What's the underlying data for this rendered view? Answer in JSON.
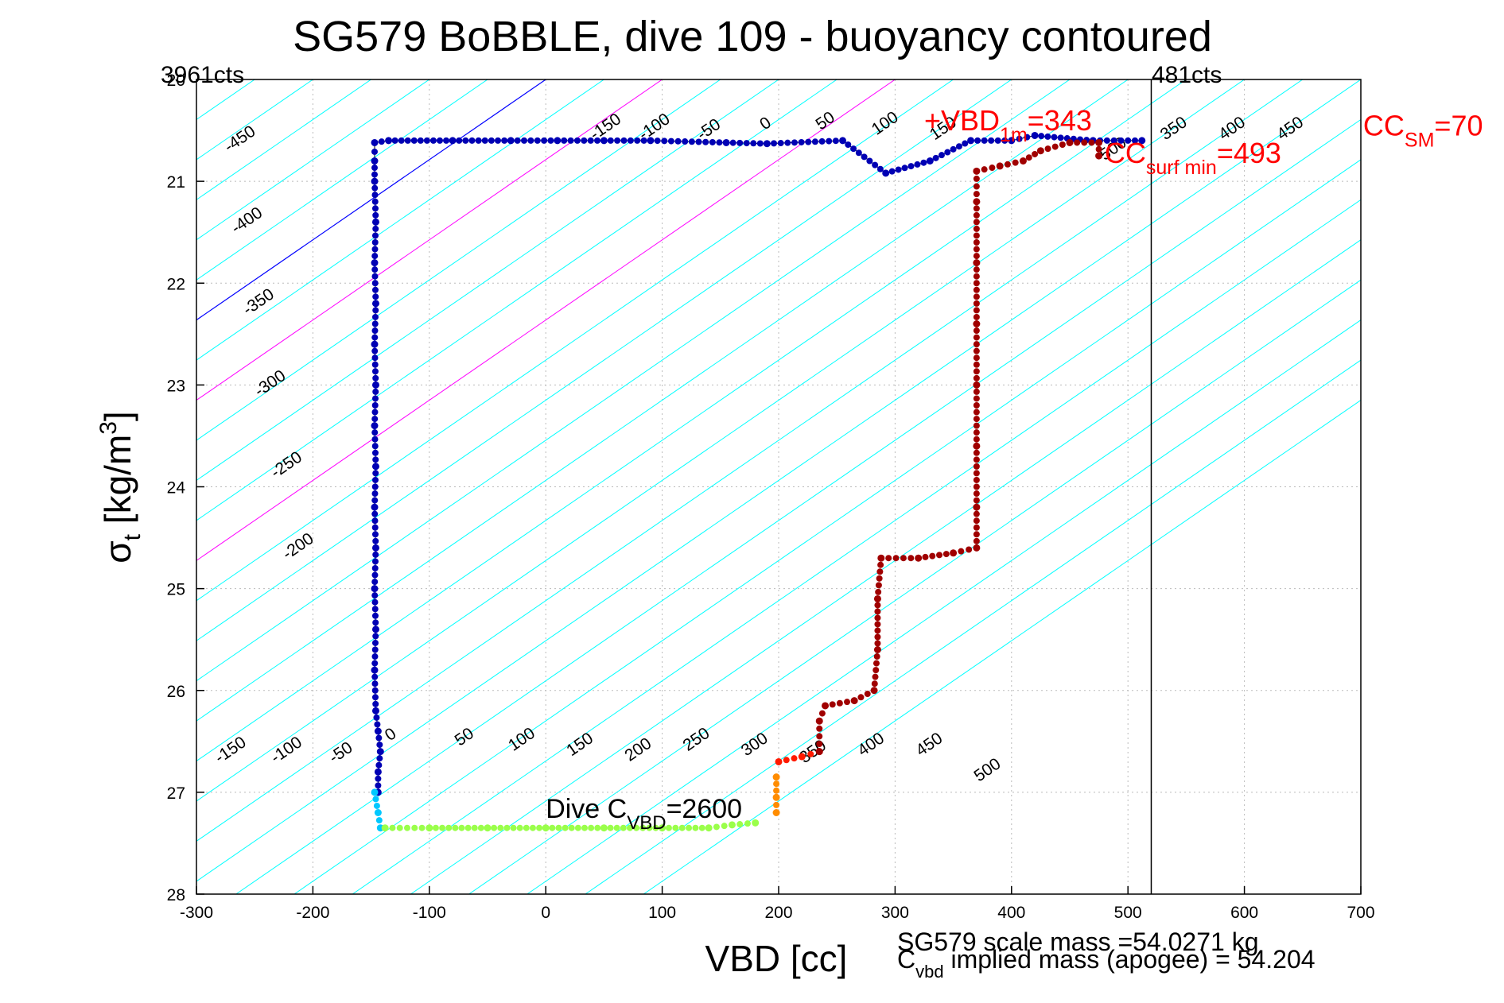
{
  "chart_data": {
    "type": "scatter",
    "title": "SG579 BoBBLE, dive 109 - buoyancy contoured",
    "xlabel": "VBD [cc]",
    "ylabel_main": "σ",
    "ylabel_sub": "t",
    "ylabel_units": "[kg/m",
    "ylabel_sup": "3",
    "ylabel_close": "]",
    "xlim": [
      -300,
      700
    ],
    "ylim": [
      20,
      28
    ],
    "y_reversed": true,
    "grid": true,
    "xticks": [
      "-300",
      "-200",
      "-100",
      "0",
      "100",
      "200",
      "300",
      "400",
      "500",
      "600",
      "700"
    ],
    "yticks": [
      "20",
      "21",
      "22",
      "23",
      "24",
      "25",
      "26",
      "27",
      "28"
    ],
    "counts_left": "3961cts",
    "counts_right": "481cts",
    "counts_right_x": 520,
    "isoline_slope_per_unit_sigma": 127.0,
    "isoline_offsets": [
      -650,
      -600,
      -550,
      -500,
      -450,
      -400,
      -350,
      -300,
      -250,
      -200,
      -150,
      -100,
      -50,
      0,
      50,
      100,
      150,
      200,
      250,
      300,
      350,
      400,
      450,
      500,
      550,
      600,
      650,
      700,
      750,
      800,
      850,
      900,
      950,
      1000,
      1050,
      1100
    ],
    "isoline_colors": {
      "default": "#00ffff",
      "zero": "#0000ff",
      "highlight": "#ff00ff"
    },
    "highlight_offsets": [
      100,
      300
    ],
    "isoline_labels_top": [
      {
        "text": "-450",
        "x": -272,
        "y": 20.72
      },
      {
        "text": "-400",
        "x": -266,
        "y": 21.52
      },
      {
        "text": "-350",
        "x": -256,
        "y": 22.32
      },
      {
        "text": "-300",
        "x": -246,
        "y": 23.12
      },
      {
        "text": "-250",
        "x": -232,
        "y": 23.92
      },
      {
        "text": "-200",
        "x": -222,
        "y": 24.72
      },
      {
        "text": "-150",
        "x": 42,
        "y": 20.6
      },
      {
        "text": "-100",
        "x": 84,
        "y": 20.6
      },
      {
        "text": "-50",
        "x": 134,
        "y": 20.6
      },
      {
        "text": "0",
        "x": 188,
        "y": 20.5
      },
      {
        "text": "50",
        "x": 236,
        "y": 20.5
      },
      {
        "text": "100",
        "x": 284,
        "y": 20.55
      },
      {
        "text": "150",
        "x": 334,
        "y": 20.6
      },
      {
        "text": "350",
        "x": 532,
        "y": 20.6
      },
      {
        "text": "400",
        "x": 582,
        "y": 20.6
      },
      {
        "text": "450",
        "x": 632,
        "y": 20.6
      },
      {
        "text": "500",
        "x": 480,
        "y": 20.8
      }
    ],
    "isoline_labels_bottom": [
      {
        "text": "-150",
        "x": -280,
        "y": 26.72
      },
      {
        "text": "-100",
        "x": -232,
        "y": 26.72
      },
      {
        "text": "-50",
        "x": -182,
        "y": 26.72
      },
      {
        "text": "0",
        "x": -134,
        "y": 26.5
      },
      {
        "text": "50",
        "x": -74,
        "y": 26.55
      },
      {
        "text": "100",
        "x": -28,
        "y": 26.6
      },
      {
        "text": "150",
        "x": 22,
        "y": 26.65
      },
      {
        "text": "200",
        "x": 72,
        "y": 26.7
      },
      {
        "text": "250",
        "x": 122,
        "y": 26.6
      },
      {
        "text": "300",
        "x": 172,
        "y": 26.65
      },
      {
        "text": "350",
        "x": 222,
        "y": 26.72
      },
      {
        "text": "400",
        "x": 272,
        "y": 26.65
      },
      {
        "text": "450",
        "x": 322,
        "y": 26.65
      },
      {
        "text": "500",
        "x": 372,
        "y": 26.9
      }
    ],
    "series": [
      {
        "points": [
          [
            -144,
            27.0
          ],
          [
            -144,
            26.8
          ],
          [
            -142,
            26.6
          ],
          [
            -144,
            26.4
          ],
          [
            -146,
            26.2
          ],
          [
            -147,
            25.8
          ],
          [
            -146,
            25.4
          ],
          [
            -147,
            25.0
          ],
          [
            -146,
            24.6
          ],
          [
            -147,
            24.2
          ],
          [
            -146,
            23.8
          ],
          [
            -147,
            23.4
          ],
          [
            -146,
            23.0
          ],
          [
            -147,
            22.6
          ],
          [
            -146,
            22.2
          ],
          [
            -147,
            21.8
          ],
          [
            -146,
            21.4
          ],
          [
            -147,
            21.0
          ],
          [
            -147,
            20.8
          ],
          [
            -147,
            20.62
          ],
          [
            -135,
            20.6
          ],
          [
            -80,
            20.6
          ],
          [
            -30,
            20.6
          ],
          [
            10,
            20.6
          ],
          [
            50,
            20.6
          ],
          [
            90,
            20.6
          ],
          [
            155,
            20.62
          ],
          [
            190,
            20.63
          ],
          [
            255,
            20.6
          ],
          [
            292,
            20.92
          ],
          [
            330,
            20.8
          ],
          [
            365,
            20.6
          ],
          [
            400,
            20.6
          ],
          [
            420,
            20.55
          ],
          [
            470,
            20.6
          ],
          [
            512,
            20.6
          ]
        ],
        "color": "#0000b4"
      },
      {
        "points": [
          [
            -147,
            27.0
          ],
          [
            -144,
            27.2
          ],
          [
            -142,
            27.35
          ]
        ],
        "color": "#00c8ff"
      },
      {
        "points": [
          [
            -138,
            27.35
          ],
          [
            -100,
            27.35
          ],
          [
            -50,
            27.35
          ],
          [
            0,
            27.35
          ],
          [
            50,
            27.35
          ],
          [
            100,
            27.35
          ],
          [
            140,
            27.35
          ],
          [
            160,
            27.32
          ],
          [
            180,
            27.3
          ]
        ],
        "color": "#9aff4a"
      },
      {
        "points": [
          [
            198,
            26.85
          ],
          [
            198,
            27.05
          ],
          [
            198,
            27.2
          ]
        ],
        "color": "#ff8c00"
      },
      {
        "points": [
          [
            200,
            26.7
          ],
          [
            220,
            26.65
          ],
          [
            235,
            26.6
          ]
        ],
        "color": "#ff1a00"
      },
      {
        "points": [
          [
            235,
            26.6
          ],
          [
            235,
            26.3
          ],
          [
            240,
            26.15
          ],
          [
            265,
            26.1
          ],
          [
            282,
            26.0
          ],
          [
            285,
            25.6
          ],
          [
            285,
            25.1
          ],
          [
            288,
            24.7
          ],
          [
            320,
            24.7
          ],
          [
            350,
            24.65
          ],
          [
            370,
            24.6
          ],
          [
            370,
            24.2
          ],
          [
            370,
            23.6
          ],
          [
            370,
            23.0
          ],
          [
            370,
            22.4
          ],
          [
            370,
            21.8
          ],
          [
            370,
            21.2
          ],
          [
            370,
            20.9
          ],
          [
            390,
            20.85
          ],
          [
            410,
            20.8
          ],
          [
            425,
            20.7
          ],
          [
            450,
            20.62
          ],
          [
            475,
            20.62
          ],
          [
            475,
            20.75
          ]
        ],
        "color": "#a00000"
      }
    ],
    "annotations": [
      {
        "text": "+VBD",
        "sub": "1m",
        "tail": "=343",
        "color": "#ff0000",
        "x": 325,
        "y": 20.5
      },
      {
        "text": "CC",
        "sub": "surf min",
        "tail": "=493",
        "color": "#ff0000",
        "x": 480,
        "y": 20.82
      },
      {
        "text": "CC",
        "sub": "SM",
        "tail": "=70",
        "color": "#ff0000",
        "x": 702,
        "y": 20.55
      },
      {
        "text": "Dive C",
        "sub": "VBD",
        "tail": "=2600",
        "color": "#000000",
        "x": 0,
        "y": 27.25
      }
    ],
    "footer_line1": "SG579 scale mass =54.0271 kg",
    "footer_line2_prefix": "C",
    "footer_line2_sub": "vbd",
    "footer_line2_tail": " implied mass (apogee) = 54.204"
  }
}
